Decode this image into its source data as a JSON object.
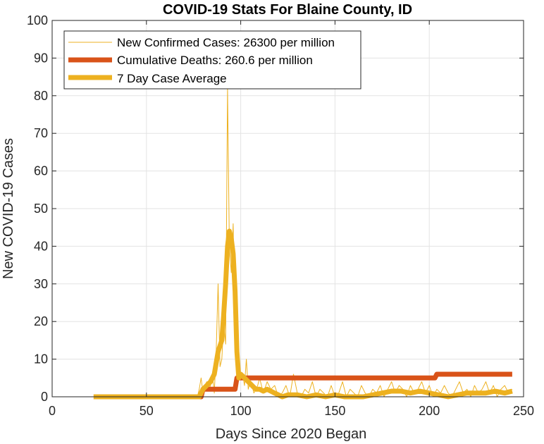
{
  "chart_data": {
    "type": "line",
    "title": "COVID-19 Stats For Blaine County, ID",
    "xlabel": "Days Since 2020 Began",
    "ylabel": "New COVID-19 Cases",
    "xlim": [
      0,
      250
    ],
    "ylim": [
      0,
      100
    ],
    "xticks": [
      0,
      50,
      100,
      150,
      200,
      250
    ],
    "yticks": [
      0,
      10,
      20,
      30,
      40,
      50,
      60,
      70,
      80,
      90,
      100
    ],
    "grid": true,
    "legend_position": "top-left",
    "series": [
      {
        "name": "New Confirmed Cases: 26300 per million",
        "color": "#EDB120",
        "width": "thin",
        "x": [
          22,
          70,
          77,
          78,
          79,
          80,
          81,
          82,
          83,
          84,
          85,
          86,
          87,
          88,
          89,
          90,
          91,
          92,
          93,
          94,
          95,
          96,
          97,
          98,
          99,
          100,
          101,
          102,
          103,
          104,
          105,
          106,
          107,
          108,
          109,
          110,
          112,
          114,
          116,
          118,
          120,
          122,
          124,
          126,
          128,
          130,
          132,
          134,
          136,
          138,
          140,
          142,
          144,
          146,
          148,
          150,
          152,
          154,
          156,
          158,
          160,
          162,
          164,
          166,
          168,
          170,
          172,
          174,
          176,
          178,
          180,
          182,
          184,
          186,
          188,
          190,
          192,
          194,
          196,
          198,
          200,
          202,
          204,
          206,
          208,
          210,
          212,
          214,
          216,
          218,
          220,
          222,
          224,
          226,
          228,
          230,
          232,
          234,
          236,
          238,
          240,
          242,
          244
        ],
        "y": [
          0,
          0,
          0,
          2,
          5,
          1,
          3,
          4,
          2,
          3,
          6,
          1,
          12,
          30,
          8,
          10,
          20,
          14,
          82,
          40,
          33,
          46,
          15,
          22,
          8,
          5,
          6,
          3,
          10,
          2,
          4,
          3,
          1,
          2,
          3,
          5,
          1,
          4,
          2,
          3,
          0,
          1,
          3,
          0,
          6,
          1,
          0,
          2,
          1,
          4,
          0,
          2,
          1,
          0,
          3,
          0,
          1,
          4,
          0,
          2,
          1,
          0,
          3,
          1,
          0,
          2,
          1,
          3,
          0,
          2,
          4,
          1,
          3,
          2,
          0,
          3,
          1,
          2,
          4,
          1,
          3,
          0,
          2,
          1,
          3,
          1,
          0,
          2,
          4,
          1,
          2,
          0,
          3,
          1,
          2,
          4,
          1,
          3,
          0,
          2,
          3,
          1,
          2
        ]
      },
      {
        "name": "Cumulative Deaths: 260.6 per million",
        "color": "#D95319",
        "width": "thick",
        "x": [
          22,
          79,
          80,
          86,
          87,
          97,
          98,
          203,
          204,
          244
        ],
        "y": [
          0,
          0,
          2,
          2,
          2,
          2,
          5,
          5,
          6,
          6
        ]
      },
      {
        "name": "7 Day Case Average",
        "color": "#EDB120",
        "width": "thick",
        "x": [
          22,
          78,
          80,
          82,
          84,
          86,
          88,
          90,
          91,
          92,
          93,
          94,
          95,
          96,
          97,
          98,
          99,
          100,
          102,
          104,
          106,
          108,
          110,
          112,
          114,
          116,
          118,
          120,
          122,
          125,
          130,
          135,
          140,
          145,
          150,
          155,
          160,
          165,
          170,
          175,
          180,
          185,
          190,
          195,
          200,
          205,
          210,
          215,
          220,
          225,
          230,
          235,
          240,
          244
        ],
        "y": [
          0,
          0,
          2,
          3,
          4,
          6,
          12,
          15,
          22,
          30,
          40,
          44,
          42,
          38,
          28,
          12,
          5,
          6,
          5,
          4,
          3,
          2,
          2,
          1.5,
          2,
          1.5,
          1,
          0.5,
          0,
          0.5,
          0.5,
          0,
          0.5,
          0,
          0.5,
          0,
          0,
          0,
          0.5,
          1,
          1.5,
          1.5,
          1,
          1.5,
          1,
          0.5,
          0,
          0.5,
          1,
          1,
          1,
          1.5,
          1,
          1.5
        ]
      }
    ]
  }
}
